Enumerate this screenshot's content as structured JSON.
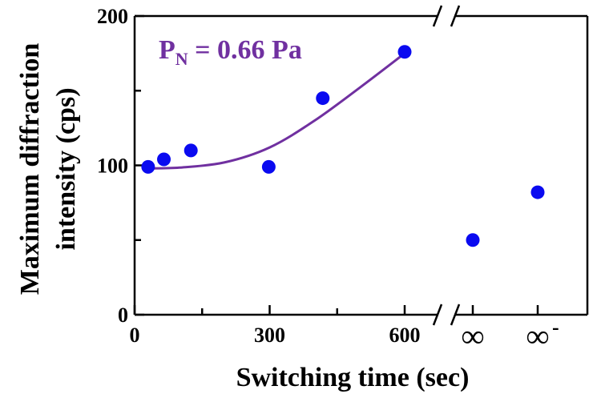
{
  "chart_data": {
    "type": "scatter",
    "xlabel": "Switching time (sec)",
    "ylabel_lines": [
      "Maximum diffraction",
      "intensity (cps)"
    ],
    "annotation": {
      "base": "P",
      "subscript": "N",
      "rest": " = 0.66 Pa"
    },
    "x_ticks": [
      "0",
      "300",
      "600"
    ],
    "x_break_ticks": [
      "∞",
      "∞",
      "-"
    ],
    "y_ticks": [
      "0",
      "100",
      "200"
    ],
    "xlim": [
      0,
      740
    ],
    "ylim": [
      0,
      200
    ],
    "axis_break": true,
    "points": [
      {
        "x": 30,
        "y": 99
      },
      {
        "x": 65,
        "y": 104
      },
      {
        "x": 125,
        "y": 110
      },
      {
        "x": 298,
        "y": 99
      },
      {
        "x": 418,
        "y": 145
      },
      {
        "x": 600,
        "y": 176
      }
    ],
    "break_points": [
      {
        "x": "∞",
        "y": 50
      },
      {
        "x": "∞-",
        "y": 82
      }
    ],
    "fit_curve": [
      {
        "x": 30,
        "y": 98
      },
      {
        "x": 100,
        "y": 98.5
      },
      {
        "x": 200,
        "y": 102
      },
      {
        "x": 300,
        "y": 112
      },
      {
        "x": 400,
        "y": 130
      },
      {
        "x": 500,
        "y": 152
      },
      {
        "x": 600,
        "y": 175
      }
    ],
    "colors": {
      "points": "#0a0af0",
      "curve": "#7030a0",
      "axes": "#000000"
    }
  }
}
